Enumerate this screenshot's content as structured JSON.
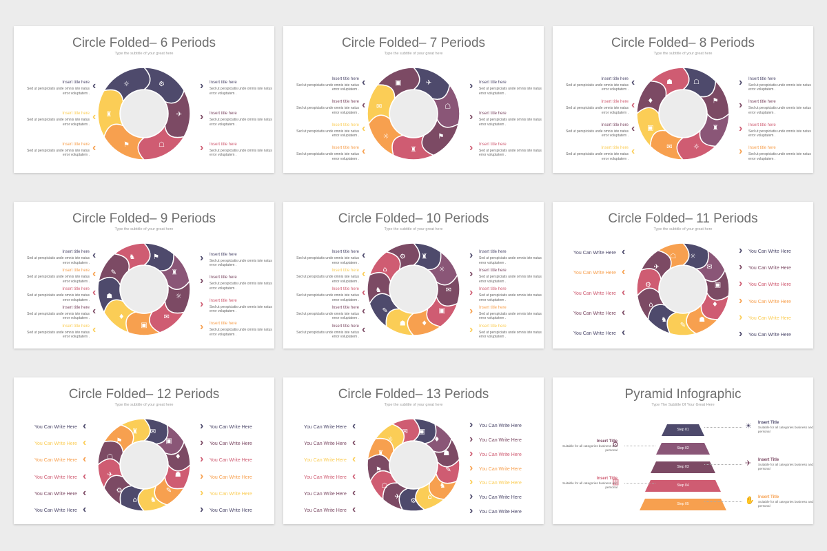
{
  "colors": {
    "navy": "#4e4a6c",
    "plum": "#7c4a64",
    "rose": "#cf5c72",
    "orange": "#f7a04f",
    "yellow": "#fbcd56",
    "mauve": "#8a5677"
  },
  "slides": [
    {
      "title": "Circle Folded– 6 Periods",
      "subtitle": "Type the subtitle of your great here",
      "segments": [
        "navy",
        "plum",
        "rose",
        "orange",
        "yellow",
        "navy"
      ],
      "items_left": [
        {
          "title": "Insert title here",
          "desc": "Sed ut perspiciatis unde omnis iste natus error voluptatem .",
          "color": "navy"
        },
        {
          "title": "Insert title here",
          "desc": "Sed ut perspiciatis unde omnis iste natus error voluptatem .",
          "color": "yellow"
        },
        {
          "title": "Insert title here",
          "desc": "Sed ut perspiciatis unde omnis iste natus error voluptatem .",
          "color": "orange"
        }
      ],
      "items_right": [
        {
          "title": "Insert title here",
          "desc": "Sed ut perspiciatis unde omnis iste natus error voluptatem .",
          "color": "navy"
        },
        {
          "title": "Insert title here",
          "desc": "Sed ut perspiciatis unde omnis iste natus error voluptatem .",
          "color": "plum"
        },
        {
          "title": "Insert title here",
          "desc": "Sed ut perspiciatis unde omnis iste natus error voluptatem .",
          "color": "rose"
        }
      ]
    },
    {
      "title": "Circle Folded– 7 Periods",
      "subtitle": "Type the subtitle of your great here",
      "segments": [
        "navy",
        "mauve",
        "plum",
        "rose",
        "orange",
        "yellow",
        "plum"
      ],
      "items_left": [
        {
          "title": "Insert title here",
          "desc": "Sed ut perspiciatis unde omnis iste natus error voluptatem .",
          "color": "navy"
        },
        {
          "title": "Insert title here",
          "desc": "Sed ut perspiciatis unde omnis iste natus error voluptatem .",
          "color": "plum"
        },
        {
          "title": "Insert title here",
          "desc": "Sed ut perspiciatis unde omnis iste natus error voluptatem .",
          "color": "yellow"
        },
        {
          "title": "Insert title here",
          "desc": "Sed ut perspiciatis unde omnis iste natus error voluptatem .",
          "color": "orange"
        }
      ],
      "items_right": [
        {
          "title": "Insert title here",
          "desc": "Sed ut perspiciatis unde omnis iste natus error voluptatem .",
          "color": "navy"
        },
        {
          "title": "Insert title here",
          "desc": "Sed ut perspiciatis unde omnis iste natus error voluptatem .",
          "color": "plum"
        },
        {
          "title": "Insert title here",
          "desc": "Sed ut perspiciatis unde omnis iste natus error voluptatem .",
          "color": "rose"
        }
      ]
    },
    {
      "title": "Circle Folded– 8 Periods",
      "subtitle": "Type the subtitle of your great here",
      "segments": [
        "navy",
        "plum",
        "mauve",
        "rose",
        "orange",
        "yellow",
        "plum",
        "rose"
      ],
      "items_left": [
        {
          "title": "Insert title here",
          "desc": "Sed ut perspiciatis unde omnis iste natus error voluptatem .",
          "color": "navy"
        },
        {
          "title": "Insert title here",
          "desc": "Sed ut perspiciatis unde omnis iste natus error voluptatem .",
          "color": "rose"
        },
        {
          "title": "Insert title here",
          "desc": "Sed ut perspiciatis unde omnis iste natus error voluptatem .",
          "color": "plum"
        },
        {
          "title": "Insert title here",
          "desc": "Sed ut perspiciatis unde omnis iste natus error voluptatem .",
          "color": "yellow"
        }
      ],
      "items_right": [
        {
          "title": "Insert title here",
          "desc": "Sed ut perspiciatis unde omnis iste natus error voluptatem .",
          "color": "navy"
        },
        {
          "title": "Insert title here",
          "desc": "Sed ut perspiciatis unde omnis iste natus error voluptatem .",
          "color": "plum"
        },
        {
          "title": "Insert title here",
          "desc": "Sed ut perspiciatis unde omnis iste natus error voluptatem .",
          "color": "rose"
        },
        {
          "title": "Insert title here",
          "desc": "Sed ut perspiciatis unde omnis iste natus error voluptatem .",
          "color": "orange"
        }
      ]
    },
    {
      "title": "Circle Folded– 9 Periods",
      "subtitle": "Type the subtitle of your great here",
      "segments": [
        "navy",
        "mauve",
        "plum",
        "rose",
        "orange",
        "yellow",
        "navy",
        "plum",
        "rose"
      ],
      "items_left": [
        {
          "title": "Insert title here",
          "desc": "Sed ut perspiciatis unde omnis iste natus error voluptatem .",
          "color": "navy"
        },
        {
          "title": "Insert title here",
          "desc": "Sed ut perspiciatis unde omnis iste natus error voluptatem .",
          "color": "orange"
        },
        {
          "title": "Insert title here",
          "desc": "Sed ut perspiciatis unde omnis iste natus error voluptatem .",
          "color": "rose"
        },
        {
          "title": "Insert title here",
          "desc": "Sed ut perspiciatis unde omnis iste natus error voluptatem .",
          "color": "plum"
        },
        {
          "title": "Insert title here",
          "desc": "Sed ut perspiciatis unde omnis iste natus error voluptatem .",
          "color": "yellow"
        }
      ],
      "items_right": [
        {
          "title": "Insert title here",
          "desc": "Sed ut perspiciatis unde omnis iste natus error voluptatem .",
          "color": "navy"
        },
        {
          "title": "Insert title here",
          "desc": "Sed ut perspiciatis unde omnis iste natus error voluptatem .",
          "color": "plum"
        },
        {
          "title": "Insert title here",
          "desc": "Sed ut perspiciatis unde omnis iste natus error voluptatem .",
          "color": "rose"
        },
        {
          "title": "Insert title here",
          "desc": "Sed ut perspiciatis unde omnis iste natus error voluptatem .",
          "color": "orange"
        }
      ]
    },
    {
      "title": "Circle Folded– 10 Periods",
      "subtitle": "Type the subtitle of your great here",
      "segments": [
        "navy",
        "mauve",
        "plum",
        "rose",
        "orange",
        "yellow",
        "navy",
        "plum",
        "rose",
        "plum"
      ],
      "items_left": [
        {
          "title": "Insert title here",
          "desc": "Sed ut perspiciatis unde omnis iste natus error voluptatem .",
          "color": "navy"
        },
        {
          "title": "Insert title here",
          "desc": "Sed ut perspiciatis unde omnis iste natus error voluptatem .",
          "color": "yellow"
        },
        {
          "title": "Insert title here",
          "desc": "Sed ut perspiciatis unde omnis iste natus error voluptatem .",
          "color": "rose"
        },
        {
          "title": "Insert title here",
          "desc": "Sed ut perspiciatis unde omnis iste natus error voluptatem .",
          "color": "plum"
        },
        {
          "title": "Insert title here",
          "desc": "Sed ut perspiciatis unde omnis iste natus error voluptatem .",
          "color": "plum"
        }
      ],
      "items_right": [
        {
          "title": "Insert title here",
          "desc": "Sed ut perspiciatis unde omnis iste natus error voluptatem .",
          "color": "navy"
        },
        {
          "title": "Insert title here",
          "desc": "Sed ut perspiciatis unde omnis iste natus error voluptatem .",
          "color": "plum"
        },
        {
          "title": "Insert title here",
          "desc": "Sed ut perspiciatis unde omnis iste natus error voluptatem .",
          "color": "rose"
        },
        {
          "title": "Insert title here",
          "desc": "Sed ut perspiciatis unde omnis iste natus error voluptatem .",
          "color": "orange"
        },
        {
          "title": "Insert title here",
          "desc": "Sed ut perspiciatis unde omnis iste natus error voluptatem .",
          "color": "yellow"
        }
      ]
    },
    {
      "title": "Circle Folded– 11 Periods",
      "subtitle": "Type the subtitle of your great here",
      "segments": [
        "navy",
        "mauve",
        "plum",
        "rose",
        "orange",
        "yellow",
        "navy",
        "plum",
        "rose",
        "plum",
        "orange"
      ],
      "short_left": [
        {
          "label": "You Can Write Here",
          "color": "navy"
        },
        {
          "label": "You Can Write Here",
          "color": "orange"
        },
        {
          "label": "You Can Write Here",
          "color": "rose"
        },
        {
          "label": "You Can Write Here",
          "color": "plum"
        },
        {
          "label": "You Can Write Here",
          "color": "navy"
        }
      ],
      "short_right": [
        {
          "label": "You Can Write Here",
          "color": "navy"
        },
        {
          "label": "You Can Write Here",
          "color": "plum"
        },
        {
          "label": "You Can Write Here",
          "color": "rose"
        },
        {
          "label": "You Can Write Here",
          "color": "orange"
        },
        {
          "label": "You Can Write Here",
          "color": "yellow"
        },
        {
          "label": "You Can Write Here",
          "color": "navy"
        }
      ]
    },
    {
      "title": "Circle Folded– 12 Periods",
      "subtitle": "Type the subtitle of your great here",
      "segments": [
        "navy",
        "mauve",
        "plum",
        "rose",
        "orange",
        "yellow",
        "navy",
        "plum",
        "rose",
        "plum",
        "orange",
        "yellow"
      ],
      "short_left": [
        {
          "label": "You Can Write Here",
          "color": "navy"
        },
        {
          "label": "You Can Write Here",
          "color": "yellow"
        },
        {
          "label": "You Can Write Here",
          "color": "orange"
        },
        {
          "label": "You Can Write Here",
          "color": "rose"
        },
        {
          "label": "You Can Write Here",
          "color": "plum"
        },
        {
          "label": "You Can Write Here",
          "color": "navy"
        }
      ],
      "short_right": [
        {
          "label": "You Can Write Here",
          "color": "navy"
        },
        {
          "label": "You Can Write Here",
          "color": "plum"
        },
        {
          "label": "You Can Write Here",
          "color": "rose"
        },
        {
          "label": "You Can Write Here",
          "color": "orange"
        },
        {
          "label": "You Can Write Here",
          "color": "yellow"
        },
        {
          "label": "You Can Write Here",
          "color": "navy"
        }
      ]
    },
    {
      "title": "Circle Folded– 13 Periods",
      "subtitle": "Type the subtitle of your great here",
      "segments": [
        "navy",
        "mauve",
        "plum",
        "rose",
        "orange",
        "yellow",
        "navy",
        "plum",
        "rose",
        "plum",
        "orange",
        "yellow",
        "rose"
      ],
      "short_left": [
        {
          "label": "You Can Write Here",
          "color": "navy"
        },
        {
          "label": "You Can Write Here",
          "color": "plum"
        },
        {
          "label": "You Can Write Here",
          "color": "yellow"
        },
        {
          "label": "You Can Write Here",
          "color": "rose"
        },
        {
          "label": "You Can Write Here",
          "color": "plum"
        },
        {
          "label": "You Can Write Here",
          "color": "plum"
        }
      ],
      "short_right": [
        {
          "label": "You Can Write Here",
          "color": "navy"
        },
        {
          "label": "You Can Write Here",
          "color": "plum"
        },
        {
          "label": "You Can Write Here",
          "color": "rose"
        },
        {
          "label": "You Can Write Here",
          "color": "orange"
        },
        {
          "label": "You Can Write Here",
          "color": "yellow"
        },
        {
          "label": "You Can Write Here",
          "color": "navy"
        },
        {
          "label": "You Can Write Here",
          "color": "navy"
        }
      ]
    }
  ],
  "pyramid": {
    "title": "Pyramid Infographic",
    "subtitle": "Type The Subtitle Of Your Great Here",
    "steps": [
      {
        "label": "Step 01",
        "color": "navy"
      },
      {
        "label": "Step 02",
        "color": "mauve"
      },
      {
        "label": "Step 03",
        "color": "plum"
      },
      {
        "label": "Step 04",
        "color": "rose"
      },
      {
        "label": "Step 05",
        "color": "orange"
      }
    ],
    "callouts": [
      {
        "side": "right",
        "title": "Insert Title",
        "desc": "Suitable for all categories business and personal",
        "color": "navy",
        "icon": "lightbulb-icon"
      },
      {
        "side": "left",
        "title": "Insert Title",
        "desc": "Suitable for all categories business and personal",
        "color": "plum",
        "icon": "gear-icon"
      },
      {
        "side": "right",
        "title": "Insert Title",
        "desc": "Suitable for all categories business and personal",
        "color": "plum",
        "icon": "plane-icon"
      },
      {
        "side": "left",
        "title": "Insert Title",
        "desc": "Suitable for all categories business and personal",
        "color": "rose",
        "icon": "chart-icon"
      },
      {
        "side": "right",
        "title": "Insert Title",
        "desc": "Suitable for all categories business and personal",
        "color": "orange",
        "icon": "handshake-icon"
      }
    ]
  }
}
